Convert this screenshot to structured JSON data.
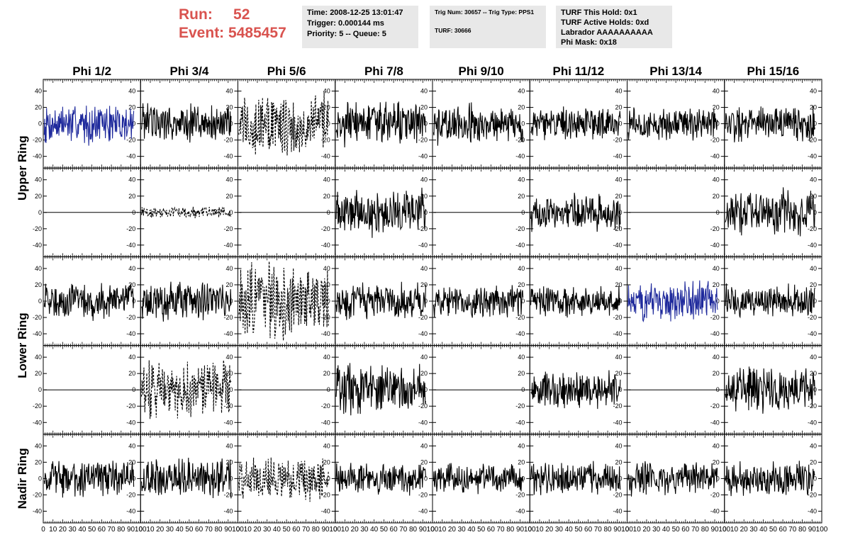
{
  "header": {
    "run_label": "Run:",
    "run_value": "52",
    "event_label": "Event:",
    "event_value": "5485457",
    "time_box": [
      "Time: 2008-12-25 13:01:47",
      "Trigger: 0.000144 ms",
      "Priority: 5 -- Queue: 5"
    ],
    "trig_box": [
      "Trig Num: 30657 -- Trig Type: PPS1",
      "",
      "TURF: 30666"
    ],
    "turf_box": [
      "TURF This Hold: 0x1",
      "TURF Active Holds: 0xd",
      "Labrador AAAAAAAAAA",
      "Phi Mask: 0x18"
    ]
  },
  "chart_data": {
    "type": "line",
    "columns": [
      "Phi 1/2",
      "Phi 3/4",
      "Phi 5/6",
      "Phi 7/8",
      "Phi 9/10",
      "Phi 11/12",
      "Phi 13/14",
      "Phi 15/16"
    ],
    "row_labels": [
      {
        "text": "Upper Ring",
        "rows": [
          0,
          1
        ]
      },
      {
        "text": "Lower Ring",
        "rows": [
          2,
          3
        ]
      },
      {
        "text": "Nadir Ring",
        "rows": [
          4,
          4
        ]
      }
    ],
    "x_range": [
      0,
      100
    ],
    "y_range": [
      -50,
      50
    ],
    "x_ticks": [
      0,
      10,
      20,
      30,
      40,
      50,
      60,
      70,
      80,
      90,
      100
    ],
    "y_ticks": [
      -40,
      -20,
      0,
      20,
      40
    ],
    "colors": {
      "normal": "#000000",
      "masked": "#1f2a9c",
      "header_red": "#d9534f"
    },
    "panels": [
      [
        "blue",
        "solid",
        "dashed",
        "solid",
        "solid",
        "solid",
        "solid",
        "solid"
      ],
      [
        "flat",
        "dashed-small",
        "flat",
        "solid",
        "flat",
        "solid",
        "flat",
        "solid"
      ],
      [
        "solid",
        "solid",
        "dashed",
        "solid",
        "solid",
        "solid",
        "blue",
        "solid"
      ],
      [
        "flat",
        "dashed",
        "flat",
        "solid",
        "flat",
        "solid",
        "flat",
        "solid"
      ],
      [
        "solid",
        "solid",
        "dashed",
        "solid",
        "solid",
        "solid",
        "solid",
        "solid"
      ]
    ],
    "amplitude_pct": [
      [
        55,
        55,
        90,
        60,
        55,
        45,
        45,
        50
      ],
      [
        0,
        15,
        0,
        65,
        0,
        50,
        0,
        65
      ],
      [
        50,
        55,
        100,
        50,
        45,
        45,
        55,
        45
      ],
      [
        0,
        80,
        0,
        70,
        0,
        50,
        0,
        60
      ],
      [
        50,
        55,
        60,
        45,
        40,
        45,
        45,
        50
      ]
    ]
  }
}
